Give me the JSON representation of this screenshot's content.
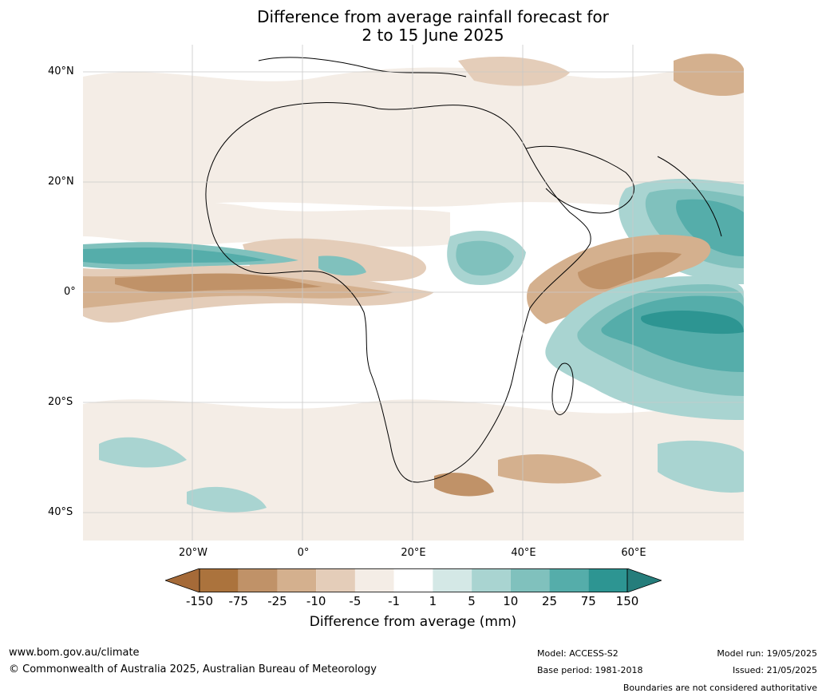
{
  "title": {
    "line1": "Difference from average rainfall forecast for",
    "line2": "2 to 15 June 2025"
  },
  "map": {
    "latitude_labels": [
      "40°N",
      "20°N",
      "0°",
      "20°S",
      "40°S"
    ],
    "longitude_labels": [
      "20°W",
      "0°",
      "20°E",
      "40°E",
      "60°E"
    ]
  },
  "legend": {
    "title": "Difference from average (mm)",
    "ticks": [
      "-150",
      "-75",
      "-25",
      "-10",
      "-5",
      "-1",
      "1",
      "5",
      "10",
      "25",
      "75",
      "150"
    ],
    "colors": [
      "#a56a38",
      "#ab733d",
      "#c09268",
      "#d4b08e",
      "#e4cdb9",
      "#f4ede6",
      "#ffffff",
      "#d4e8e6",
      "#a9d4d1",
      "#80c1bd",
      "#55adaa",
      "#2d9592",
      "#257d7b"
    ]
  },
  "footer": {
    "url": "www.bom.gov.au/climate",
    "copyright": "© Commonwealth of Australia 2025, Australian Bureau of Meteorology",
    "model": "Model: ACCESS-S2",
    "base_period": "Base period: 1981-2018",
    "model_run": "Model run: 19/05/2025",
    "issued": "Issued: 21/05/2025",
    "disclaimer": "Boundaries are not considered authoritative"
  }
}
